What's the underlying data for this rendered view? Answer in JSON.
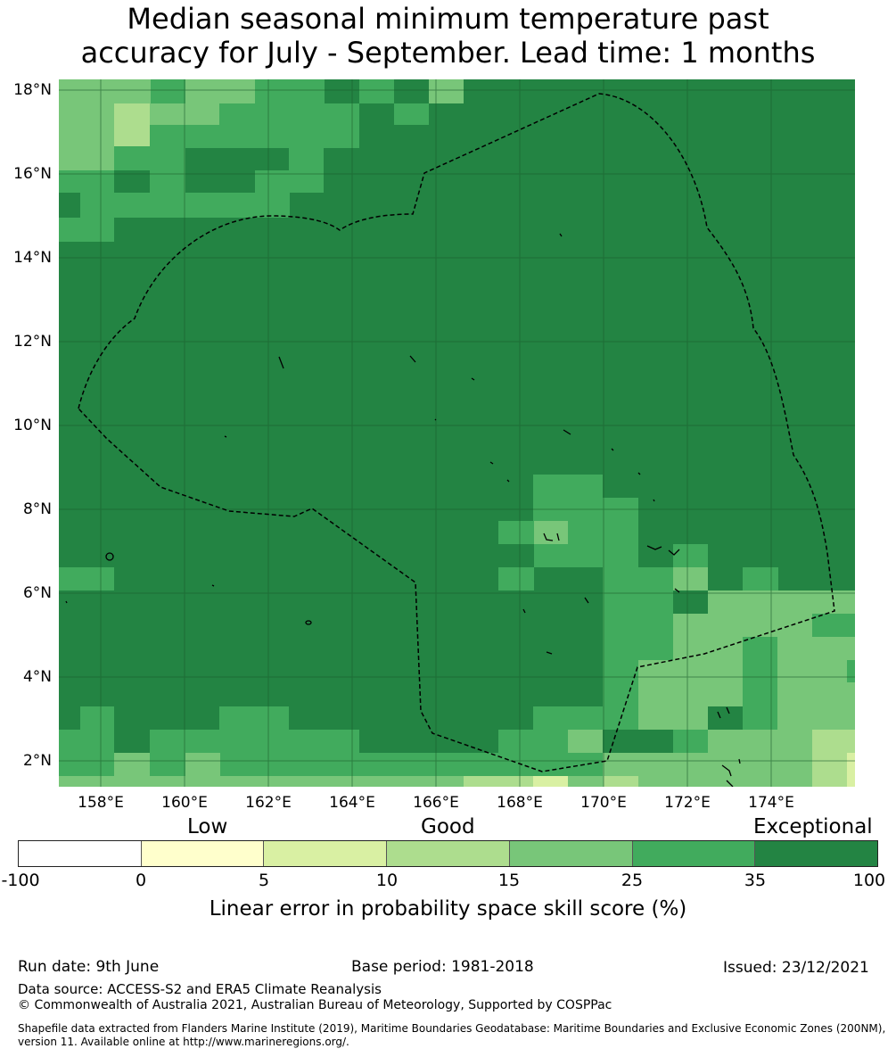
{
  "title_line1": "Median seasonal minimum temperature past",
  "title_line2": "accuracy for July - September. Lead time: 1 months",
  "map": {
    "y_labels": [
      "18°N",
      "16°N",
      "14°N",
      "12°N",
      "10°N",
      "8°N",
      "6°N",
      "4°N",
      "2°N"
    ],
    "x_labels": [
      "158°E",
      "160°E",
      "162°E",
      "164°E",
      "166°E",
      "168°E",
      "170°E",
      "172°E",
      "174°E"
    ]
  },
  "legend": {
    "categories": [
      "Low",
      "Good",
      "Exceptional"
    ],
    "ticks": [
      "-100",
      "0",
      "5",
      "10",
      "15",
      "25",
      "35",
      "100"
    ],
    "colors": [
      "#ffffff",
      "#ffffcc",
      "#d9f0a3",
      "#addd8e",
      "#78c679",
      "#41ab5d",
      "#238443"
    ],
    "title": "Linear error in probability space skill score (%)"
  },
  "footer": {
    "run_date": "Run date: 9th June",
    "base_period": "Base period: 1981-2018",
    "issued": "Issued: 23/12/2021",
    "data_source": "Data source: ACCESS-S2 and ERA5 Climate Reanalysis",
    "copyright": "© Commonwealth of Australia 2021, Australian Bureau of Meteorology, Supported by COSPPac",
    "shapefile": "Shapefile data extracted from Flanders Marine Institute (2019), Maritime Boundaries Geodatabase: Maritime Boundaries and Exclusive Economic Zones (200NM), version 11. Available online at http://www.marineregions.org/."
  }
}
